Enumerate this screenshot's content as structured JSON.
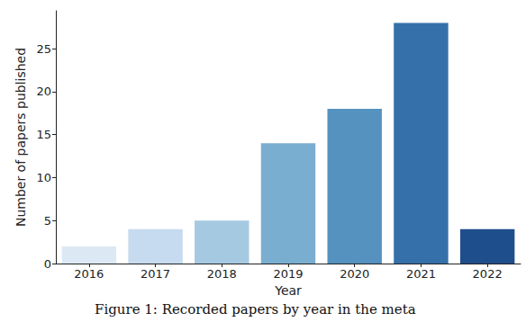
{
  "chart_data": {
    "type": "bar",
    "title": "Figure 1: Recorded papers by year in the meta",
    "x_label": "Year",
    "y_label": "Number of papers published",
    "categories": [
      "2016",
      "2017",
      "2018",
      "2019",
      "2020",
      "2021",
      "2022"
    ],
    "values": [
      2,
      4,
      5,
      14,
      18,
      28,
      4
    ],
    "colors": [
      "#dce9f5",
      "#c6dbef",
      "#a6c9e2",
      "#7aaed1",
      "#5592c0",
      "#3670aa",
      "#1f4e8c"
    ],
    "ylim": [
      0,
      29.4
    ],
    "yticks": [
      0,
      5,
      10,
      15,
      20,
      25
    ],
    "grid": false
  }
}
